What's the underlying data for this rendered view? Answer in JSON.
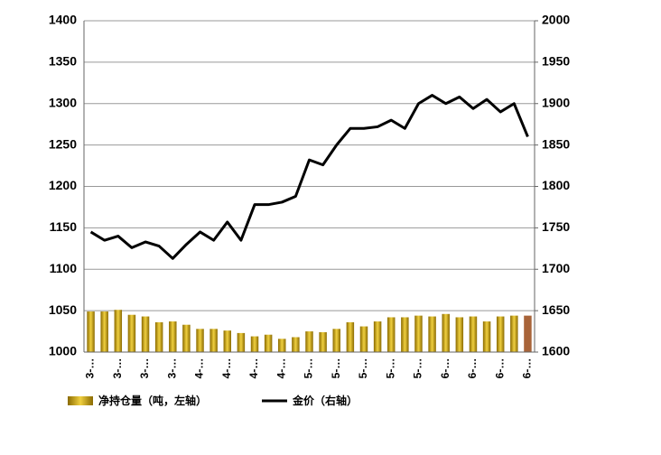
{
  "chart_data": {
    "type": "bar_line",
    "categories": [
      "3-…",
      null,
      "3-…",
      null,
      "3-…",
      null,
      "3-…",
      null,
      "4-…",
      null,
      "4-…",
      null,
      "4-…",
      null,
      "4-…",
      null,
      "5-…",
      null,
      "5-…",
      null,
      "5-…",
      null,
      "5-…",
      null,
      "5-…",
      null,
      "6-…",
      null,
      "6-…",
      null,
      "6-…",
      null,
      "6-…"
    ],
    "series": [
      {
        "name": "净持仓量（吨，左轴）",
        "type": "bar",
        "color": "#c9a20a",
        "colors": [
          "#c9a20a",
          "#c9a20a",
          "#c9a20a",
          "#c9a20a",
          "#c9a20a",
          "#c9a20a",
          "#c9a20a",
          "#c9a20a",
          "#c9a20a",
          "#c9a20a",
          "#c9a20a",
          "#c9a20a",
          "#c9a20a",
          "#c9a20a",
          "#c9a20a",
          "#c9a20a",
          "#c9a20a",
          "#c9a20a",
          "#c9a20a",
          "#c9a20a",
          "#c9a20a",
          "#c9a20a",
          "#c9a20a",
          "#c9a20a",
          "#c9a20a",
          "#c9a20a",
          "#c9a20a",
          "#c9a20a",
          "#c9a20a",
          "#c9a20a",
          "#c9a20a",
          "#c9a20a",
          "#a8643a"
        ],
        "values": [
          1049,
          1049,
          1051,
          1045,
          1043,
          1036,
          1037,
          1033,
          1028,
          1028,
          1026,
          1023,
          1019,
          1021,
          1016,
          1018,
          1025,
          1024,
          1028,
          1036,
          1031,
          1037,
          1042,
          1042,
          1044,
          1043,
          1046,
          1042,
          1043,
          1037,
          1043,
          1044,
          1044
        ]
      },
      {
        "name": "金价（右轴）",
        "type": "line",
        "axis": "y2",
        "color": "#000000",
        "values": [
          1745,
          1735,
          1740,
          1726,
          1733,
          1728,
          1713,
          1730,
          1745,
          1735,
          1757,
          1735,
          1778,
          1778,
          1781,
          1788,
          1832,
          1826,
          1850,
          1870,
          1870,
          1872,
          1880,
          1870,
          1900,
          1910,
          1900,
          1908,
          1894,
          1905,
          1890,
          1900,
          1860
        ]
      }
    ],
    "ylim": [
      1000,
      1400
    ],
    "yticks": [
      1000,
      1050,
      1100,
      1150,
      1200,
      1250,
      1300,
      1350,
      1400
    ],
    "y2lim": [
      1600,
      2000
    ],
    "y2ticks": [
      1600,
      1650,
      1700,
      1750,
      1800,
      1850,
      1900,
      1950,
      2000
    ],
    "grid": true,
    "legend": "bottom"
  }
}
